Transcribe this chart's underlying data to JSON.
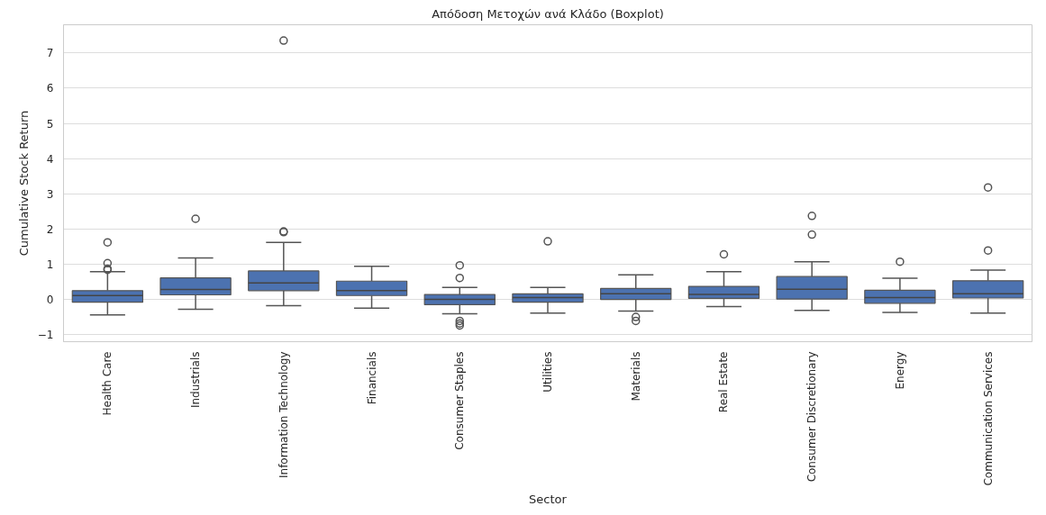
{
  "chart_data": {
    "type": "box",
    "title": "Απόδοση Μετοχών ανά Κλάδο (Boxplot)",
    "xlabel": "Sector",
    "ylabel": "Cumulative Stock Return",
    "categories": [
      "Health Care",
      "Industrials",
      "Information Technology",
      "Financials",
      "Consumer Staples",
      "Utilities",
      "Materials",
      "Real Estate",
      "Consumer Discretionary",
      "Energy",
      "Communication Services"
    ],
    "color": "#4c72b0",
    "boxes": [
      {
        "low": -0.44,
        "q1": -0.08,
        "median": 0.11,
        "q3": 0.25,
        "high": 0.79,
        "outliers": [
          0.84,
          0.87,
          1.03,
          1.62
        ]
      },
      {
        "low": -0.28,
        "q1": 0.13,
        "median": 0.28,
        "q3": 0.61,
        "high": 1.18,
        "outliers": [
          2.29
        ]
      },
      {
        "low": -0.18,
        "q1": 0.25,
        "median": 0.47,
        "q3": 0.81,
        "high": 1.62,
        "outliers": [
          1.91,
          1.93,
          7.35
        ]
      },
      {
        "low": -0.25,
        "q1": 0.11,
        "median": 0.25,
        "q3": 0.52,
        "high": 0.94
      },
      {
        "low": -0.41,
        "q1": -0.15,
        "median": 0.0,
        "q3": 0.14,
        "high": 0.34,
        "outliers": [
          0.61,
          0.97,
          -0.61,
          -0.68,
          -0.74
        ]
      },
      {
        "low": -0.39,
        "q1": -0.08,
        "median": 0.05,
        "q3": 0.16,
        "high": 0.34,
        "outliers": [
          1.65
        ]
      },
      {
        "low": -0.33,
        "q1": 0.0,
        "median": 0.16,
        "q3": 0.31,
        "high": 0.7,
        "outliers": [
          -0.5,
          -0.61
        ]
      },
      {
        "low": -0.2,
        "q1": 0.03,
        "median": 0.14,
        "q3": 0.37,
        "high": 0.79,
        "outliers": [
          1.28
        ]
      },
      {
        "low": -0.31,
        "q1": 0.01,
        "median": 0.29,
        "q3": 0.65,
        "high": 1.07,
        "outliers": [
          1.84,
          2.37
        ]
      },
      {
        "low": -0.37,
        "q1": -0.11,
        "median": 0.05,
        "q3": 0.26,
        "high": 0.6,
        "outliers": [
          1.07
        ]
      },
      {
        "low": -0.39,
        "q1": 0.04,
        "median": 0.16,
        "q3": 0.53,
        "high": 0.83,
        "outliers": [
          1.39,
          3.18
        ]
      }
    ],
    "ylim": [
      -1.2,
      7.8
    ],
    "yticks": [
      -1,
      0,
      1,
      2,
      3,
      4,
      5,
      6,
      7
    ],
    "grid": "y"
  }
}
